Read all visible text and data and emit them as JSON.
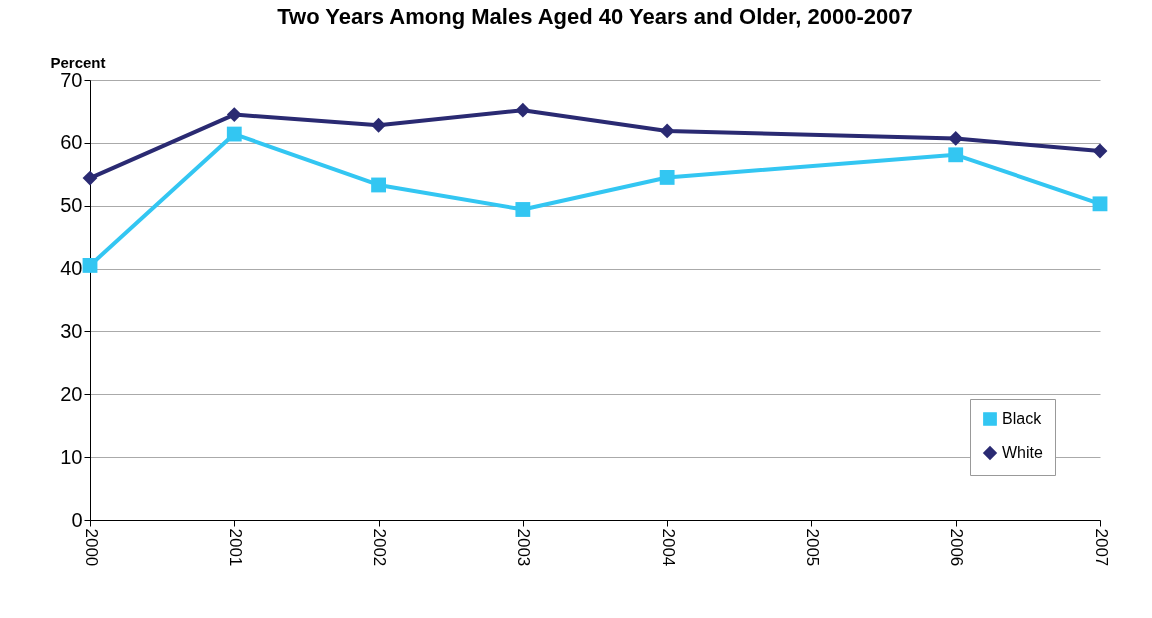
{
  "chart_data": {
    "type": "line",
    "title": "Two Years Among Males Aged 40 Years and Older, 2000-2007",
    "ylabel": "Percent",
    "x": [
      2000,
      2001,
      2002,
      2003,
      2004,
      2006,
      2007
    ],
    "series": [
      {
        "name": "Black",
        "color": "#33c6f2",
        "marker": "square",
        "values": [
          40.5,
          61.4,
          53.3,
          49.4,
          54.5,
          58.1,
          50.3
        ]
      },
      {
        "name": "White",
        "color": "#2a2a72",
        "marker": "diamond",
        "values": [
          54.4,
          64.5,
          62.8,
          65.2,
          61.9,
          60.7,
          58.7
        ]
      }
    ],
    "xlim": [
      2000,
      2007
    ],
    "xticks": [
      2000,
      2001,
      2002,
      2003,
      2004,
      2005,
      2006,
      2007
    ],
    "ylim": [
      0,
      70
    ],
    "yticks": [
      0,
      10,
      20,
      30,
      40,
      50,
      60,
      70
    ],
    "grid": "y",
    "legend": "bottom right",
    "line_style": "solid"
  }
}
